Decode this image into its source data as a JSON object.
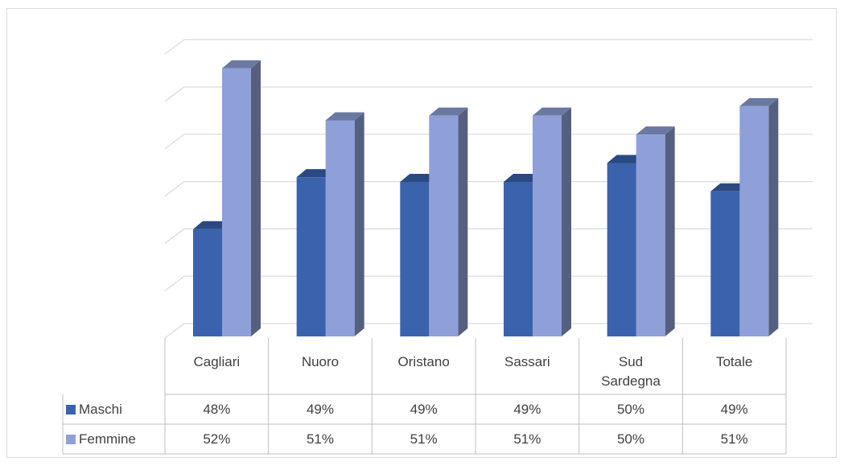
{
  "chart_data": {
    "type": "bar3d",
    "categories": [
      "Cagliari",
      "Nuoro",
      "Oristano",
      "Sassari",
      "Sud Sardegna",
      "Totale"
    ],
    "series": [
      {
        "name": "Maschi",
        "color": "#3a62ad",
        "values": [
          48.3,
          49.4,
          49.3,
          49.3,
          49.7,
          49.1
        ],
        "value_labels": [
          "48%",
          "49%",
          "49%",
          "49%",
          "50%",
          "49%"
        ]
      },
      {
        "name": "Femmine",
        "color": "#8fa0d8",
        "values": [
          51.7,
          50.6,
          50.7,
          50.7,
          50.3,
          50.9
        ],
        "value_labels": [
          "52%",
          "51%",
          "51%",
          "51%",
          "50%",
          "51%"
        ]
      }
    ],
    "ylim": [
      46,
      52
    ],
    "yticks": [
      46,
      47,
      48,
      49,
      50,
      51,
      52
    ],
    "grid": true,
    "legend": "table"
  }
}
